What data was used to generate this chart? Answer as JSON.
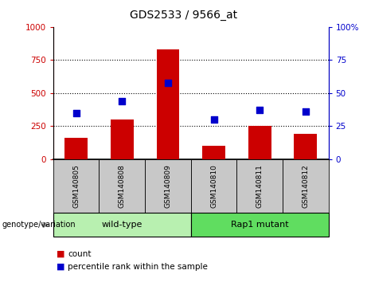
{
  "title": "GDS2533 / 9566_at",
  "samples": [
    "GSM140805",
    "GSM140808",
    "GSM140809",
    "GSM140810",
    "GSM140811",
    "GSM140812"
  ],
  "counts": [
    160,
    300,
    830,
    100,
    255,
    195
  ],
  "percentile_ranks": [
    35,
    44,
    58,
    30,
    37,
    36
  ],
  "ylim_left": [
    0,
    1000
  ],
  "ylim_right": [
    0,
    100
  ],
  "yticks_left": [
    0,
    250,
    500,
    750,
    1000
  ],
  "yticks_right": [
    0,
    25,
    50,
    75,
    100
  ],
  "bar_color": "#cc0000",
  "dot_color": "#0000cc",
  "groups": [
    {
      "label": "wild-type",
      "color": "#b8f0b0"
    },
    {
      "label": "Rap1 mutant",
      "color": "#60dd60"
    }
  ],
  "group_label": "genotype/variation",
  "legend_count_label": "count",
  "legend_pct_label": "percentile rank within the sample",
  "left_tick_color": "#cc0000",
  "right_tick_color": "#0000cc",
  "sample_label_bg": "#c8c8c8",
  "bar_width": 0.5
}
